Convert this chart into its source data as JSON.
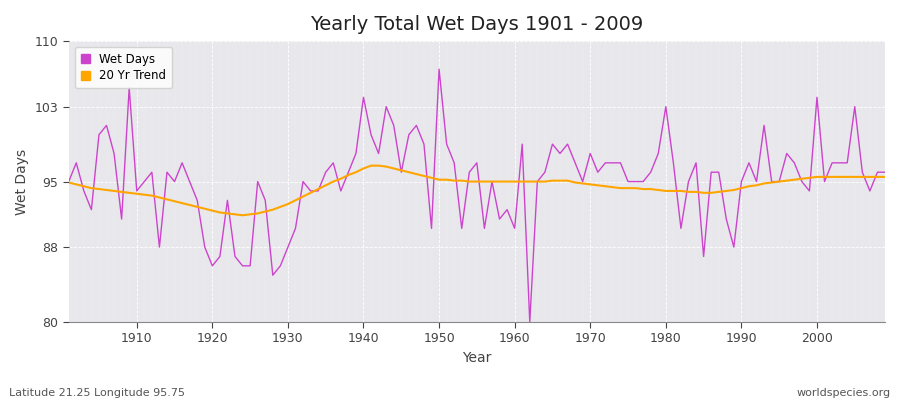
{
  "title": "Yearly Total Wet Days 1901 - 2009",
  "xlabel": "Year",
  "ylabel": "Wet Days",
  "subtitle": "Latitude 21.25 Longitude 95.75",
  "watermark": "worldspecies.org",
  "ylim": [
    80,
    110
  ],
  "yticks": [
    80,
    88,
    95,
    103,
    110
  ],
  "xlim": [
    1901,
    2009
  ],
  "xticks": [
    1910,
    1920,
    1930,
    1940,
    1950,
    1960,
    1970,
    1980,
    1990,
    2000
  ],
  "wet_days_color": "#CC44CC",
  "trend_color": "#FFA500",
  "background_color": "#FFFFFF",
  "plot_background": "#E8E8EC",
  "years": [
    1901,
    1902,
    1903,
    1904,
    1905,
    1906,
    1907,
    1908,
    1909,
    1910,
    1911,
    1912,
    1913,
    1914,
    1915,
    1916,
    1917,
    1918,
    1919,
    1920,
    1921,
    1922,
    1923,
    1924,
    1925,
    1926,
    1927,
    1928,
    1929,
    1930,
    1931,
    1932,
    1933,
    1934,
    1935,
    1936,
    1937,
    1938,
    1939,
    1940,
    1941,
    1942,
    1943,
    1944,
    1945,
    1946,
    1947,
    1948,
    1949,
    1950,
    1951,
    1952,
    1953,
    1954,
    1955,
    1956,
    1957,
    1958,
    1959,
    1960,
    1961,
    1962,
    1963,
    1964,
    1965,
    1966,
    1967,
    1968,
    1969,
    1970,
    1971,
    1972,
    1973,
    1974,
    1975,
    1976,
    1977,
    1978,
    1979,
    1980,
    1981,
    1982,
    1983,
    1984,
    1985,
    1986,
    1987,
    1988,
    1989,
    1990,
    1991,
    1992,
    1993,
    1994,
    1995,
    1996,
    1997,
    1998,
    1999,
    2000,
    2001,
    2002,
    2003,
    2004,
    2005,
    2006,
    2007,
    2008,
    2009
  ],
  "wet_days": [
    95,
    97,
    94,
    92,
    100,
    101,
    98,
    91,
    105,
    94,
    95,
    96,
    88,
    96,
    95,
    97,
    95,
    93,
    88,
    86,
    87,
    93,
    87,
    86,
    86,
    95,
    93,
    85,
    86,
    88,
    90,
    95,
    94,
    94,
    96,
    97,
    94,
    96,
    98,
    104,
    100,
    98,
    103,
    101,
    96,
    100,
    101,
    99,
    90,
    107,
    99,
    97,
    90,
    96,
    97,
    90,
    95,
    91,
    92,
    90,
    99,
    80,
    95,
    96,
    99,
    98,
    99,
    97,
    95,
    98,
    96,
    97,
    97,
    97,
    95,
    95,
    95,
    96,
    98,
    103,
    97,
    90,
    95,
    97,
    87,
    96,
    96,
    91,
    88,
    95,
    97,
    95,
    101,
    95,
    95,
    98,
    97,
    95,
    94,
    104,
    95,
    97,
    97,
    97,
    103,
    96,
    94,
    96,
    96
  ],
  "trend": [
    94.9,
    94.7,
    94.5,
    94.3,
    94.2,
    94.1,
    94.0,
    93.9,
    93.8,
    93.7,
    93.6,
    93.5,
    93.3,
    93.1,
    92.9,
    92.7,
    92.5,
    92.3,
    92.1,
    91.9,
    91.7,
    91.6,
    91.5,
    91.4,
    91.5,
    91.6,
    91.8,
    92.0,
    92.3,
    92.6,
    93.0,
    93.4,
    93.8,
    94.2,
    94.6,
    95.0,
    95.3,
    95.7,
    96.0,
    96.4,
    96.7,
    96.7,
    96.6,
    96.4,
    96.2,
    96.0,
    95.8,
    95.6,
    95.4,
    95.2,
    95.2,
    95.1,
    95.1,
    95.0,
    95.0,
    95.0,
    95.0,
    95.0,
    95.0,
    95.0,
    95.0,
    95.0,
    95.0,
    95.0,
    95.1,
    95.1,
    95.1,
    94.9,
    94.8,
    94.7,
    94.6,
    94.5,
    94.4,
    94.3,
    94.3,
    94.3,
    94.2,
    94.2,
    94.1,
    94.0,
    94.0,
    94.0,
    93.9,
    93.9,
    93.8,
    93.8,
    93.9,
    94.0,
    94.1,
    94.3,
    94.5,
    94.6,
    94.8,
    94.9,
    95.0,
    95.1,
    95.2,
    95.3,
    95.4,
    95.5,
    95.5,
    95.5,
    95.5,
    95.5,
    95.5,
    95.5,
    95.5,
    95.5,
    95.5
  ]
}
